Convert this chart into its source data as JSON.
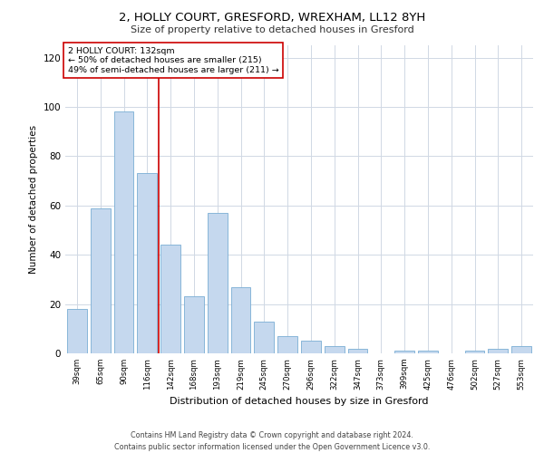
{
  "title1": "2, HOLLY COURT, GRESFORD, WREXHAM, LL12 8YH",
  "title2": "Size of property relative to detached houses in Gresford",
  "xlabel": "Distribution of detached houses by size in Gresford",
  "ylabel": "Number of detached properties",
  "footer1": "Contains HM Land Registry data © Crown copyright and database right 2024.",
  "footer2": "Contains public sector information licensed under the Open Government Licence v3.0.",
  "annotation_line1": "2 HOLLY COURT: 132sqm",
  "annotation_line2": "← 50% of detached houses are smaller (215)",
  "annotation_line3": "49% of semi-detached houses are larger (211) →",
  "bar_categories": [
    "39sqm",
    "65sqm",
    "90sqm",
    "116sqm",
    "142sqm",
    "168sqm",
    "193sqm",
    "219sqm",
    "245sqm",
    "270sqm",
    "296sqm",
    "322sqm",
    "347sqm",
    "373sqm",
    "399sqm",
    "425sqm",
    "476sqm",
    "502sqm",
    "527sqm",
    "553sqm"
  ],
  "bar_values": [
    18,
    59,
    98,
    73,
    44,
    23,
    57,
    27,
    13,
    7,
    5,
    3,
    2,
    0,
    1,
    1,
    0,
    1,
    2,
    3
  ],
  "bar_color": "#c5d8ee",
  "bar_edge_color": "#7aadd4",
  "vline_color": "#cc0000",
  "vline_x": 3.5,
  "annotation_box_color": "#ffffff",
  "annotation_box_edge_color": "#cc0000",
  "grid_color": "#d0d8e4",
  "bg_color": "#ffffff",
  "ylim": [
    0,
    125
  ],
  "yticks": [
    0,
    20,
    40,
    60,
    80,
    100,
    120
  ]
}
